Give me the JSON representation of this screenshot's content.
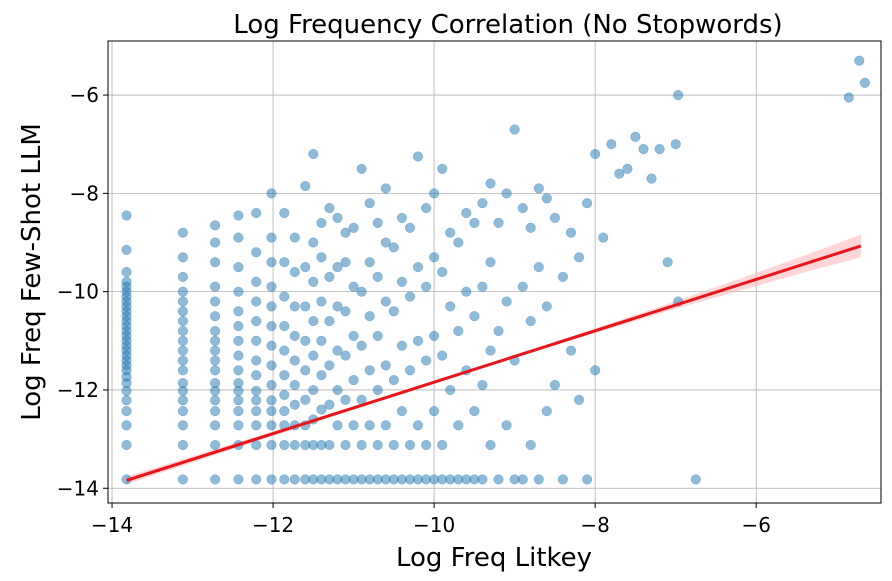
{
  "chart_data": {
    "type": "scatter",
    "title": "Log Frequency Correlation (No Stopwords)",
    "xlabel": "Log Freq Litkey",
    "ylabel": "Log Freq Few-Shot LLM",
    "xlim": [
      -14.05,
      -4.45
    ],
    "ylim": [
      -14.3,
      -4.9
    ],
    "xticks": [
      -14,
      -12,
      -10,
      -8,
      -6
    ],
    "yticks": [
      -14,
      -12,
      -10,
      -8,
      -6
    ],
    "xtick_labels": [
      "−14",
      "−12",
      "−10",
      "−8",
      "−6"
    ],
    "ytick_labels": [
      "−14",
      "−12",
      "−10",
      "−8",
      "−6"
    ],
    "grid": true,
    "colors": {
      "points": "#1f77b4",
      "regression": "#e8161b",
      "band": "#ffb3b8"
    },
    "point_alpha": 0.5,
    "regression": {
      "x": [
        -13.82,
        -4.7
      ],
      "y": [
        -13.84,
        -9.07
      ],
      "band_halfwidth_at_ends": [
        0.05,
        0.2
      ]
    },
    "series": [
      {
        "name": "words",
        "x": [
          -13.82,
          -13.82,
          -13.82,
          -13.82,
          -13.82,
          -13.82,
          -13.82,
          -13.82,
          -13.82,
          -13.82,
          -13.82,
          -13.82,
          -13.82,
          -13.82,
          -13.82,
          -13.82,
          -13.82,
          -13.82,
          -13.82,
          -13.82,
          -13.82,
          -13.82,
          -13.82,
          -13.82,
          -13.82,
          -13.82,
          -13.82,
          -13.82,
          -13.82,
          -13.82,
          -13.12,
          -13.12,
          -13.12,
          -13.12,
          -13.12,
          -13.12,
          -13.12,
          -13.12,
          -13.12,
          -13.12,
          -13.12,
          -13.12,
          -13.12,
          -13.12,
          -13.12,
          -13.12,
          -13.12,
          -13.12,
          -13.12,
          -12.72,
          -12.72,
          -12.72,
          -12.72,
          -12.72,
          -12.72,
          -12.72,
          -12.72,
          -12.72,
          -12.72,
          -12.72,
          -12.72,
          -12.72,
          -12.72,
          -12.72,
          -12.72,
          -12.72,
          -12.72,
          -12.43,
          -12.43,
          -12.43,
          -12.43,
          -12.43,
          -12.43,
          -12.43,
          -12.43,
          -12.43,
          -12.43,
          -12.43,
          -12.43,
          -12.43,
          -12.43,
          -12.43,
          -12.43,
          -12.21,
          -12.21,
          -12.21,
          -12.21,
          -12.21,
          -12.21,
          -12.21,
          -12.21,
          -12.21,
          -12.21,
          -12.21,
          -12.21,
          -12.21,
          -12.21,
          -12.02,
          -12.02,
          -12.02,
          -12.02,
          -12.02,
          -12.02,
          -12.02,
          -12.02,
          -12.02,
          -12.02,
          -12.02,
          -12.02,
          -12.02,
          -12.02,
          -11.86,
          -11.86,
          -11.86,
          -11.86,
          -11.86,
          -11.86,
          -11.86,
          -11.86,
          -11.86,
          -11.86,
          -11.86,
          -11.73,
          -11.73,
          -11.73,
          -11.73,
          -11.73,
          -11.73,
          -11.73,
          -11.73,
          -11.73,
          -11.73,
          -11.6,
          -11.6,
          -11.6,
          -11.6,
          -11.6,
          -11.6,
          -11.6,
          -11.6,
          -11.6,
          -11.5,
          -11.5,
          -11.5,
          -11.5,
          -11.5,
          -11.5,
          -11.5,
          -11.5,
          -11.5,
          -11.4,
          -11.4,
          -11.4,
          -11.4,
          -11.4,
          -11.4,
          -11.4,
          -11.4,
          -11.3,
          -11.3,
          -11.3,
          -11.3,
          -11.3,
          -11.3,
          -11.3,
          -11.2,
          -11.2,
          -11.2,
          -11.2,
          -11.2,
          -11.2,
          -11.2,
          -11.1,
          -11.1,
          -11.1,
          -11.1,
          -11.1,
          -11.1,
          -11.1,
          -11.0,
          -11.0,
          -11.0,
          -11.0,
          -11.0,
          -11.0,
          -10.9,
          -10.9,
          -10.9,
          -10.9,
          -10.9,
          -10.9,
          -10.8,
          -10.8,
          -10.8,
          -10.8,
          -10.8,
          -10.8,
          -10.7,
          -10.7,
          -10.7,
          -10.7,
          -10.7,
          -10.7,
          -10.6,
          -10.6,
          -10.6,
          -10.6,
          -10.6,
          -10.6,
          -10.5,
          -10.5,
          -10.5,
          -10.5,
          -10.5,
          -10.4,
          -10.4,
          -10.4,
          -10.4,
          -10.4,
          -10.3,
          -10.3,
          -10.3,
          -10.3,
          -10.3,
          -10.2,
          -10.2,
          -10.2,
          -10.2,
          -10.2,
          -10.1,
          -10.1,
          -10.1,
          -10.1,
          -10.1,
          -10.0,
          -10.0,
          -10.0,
          -10.0,
          -10.0,
          -9.9,
          -9.9,
          -9.9,
          -9.9,
          -9.9,
          -9.8,
          -9.8,
          -9.8,
          -9.8,
          -9.7,
          -9.7,
          -9.7,
          -9.7,
          -9.6,
          -9.6,
          -9.6,
          -9.6,
          -9.5,
          -9.5,
          -9.5,
          -9.5,
          -9.4,
          -9.4,
          -9.4,
          -9.4,
          -9.3,
          -9.3,
          -9.3,
          -9.3,
          -9.2,
          -9.2,
          -9.2,
          -9.1,
          -9.1,
          -9.1,
          -9.0,
          -9.0,
          -9.0,
          -8.9,
          -8.9,
          -8.9,
          -8.8,
          -8.8,
          -8.8,
          -8.7,
          -8.7,
          -8.7,
          -8.6,
          -8.6,
          -8.6,
          -8.5,
          -8.5,
          -8.4,
          -8.4,
          -8.3,
          -8.3,
          -8.2,
          -8.2,
          -8.1,
          -8.1,
          -8.0,
          -8.0,
          -7.9,
          -7.8,
          -7.7,
          -7.6,
          -7.5,
          -7.4,
          -7.3,
          -7.2,
          -7.1,
          -7.0,
          -6.97,
          -6.97,
          -6.75,
          -4.85,
          -4.72,
          -4.65
        ],
        "y": [
          -13.82,
          -13.12,
          -12.72,
          -12.43,
          -12.21,
          -12.02,
          -11.86,
          -11.73,
          -11.6,
          -11.5,
          -11.4,
          -11.3,
          -11.2,
          -11.1,
          -11.0,
          -10.9,
          -10.8,
          -10.7,
          -10.6,
          -10.5,
          -10.4,
          -10.3,
          -10.2,
          -10.1,
          -10.0,
          -9.9,
          -9.8,
          -9.6,
          -9.15,
          -8.45,
          -13.82,
          -13.12,
          -12.72,
          -12.43,
          -12.21,
          -12.02,
          -11.86,
          -11.6,
          -11.4,
          -11.2,
          -11.0,
          -10.8,
          -10.6,
          -10.4,
          -10.2,
          -10.0,
          -9.7,
          -9.3,
          -8.8,
          -13.82,
          -13.12,
          -12.72,
          -12.43,
          -12.21,
          -12.02,
          -11.86,
          -11.6,
          -11.4,
          -11.2,
          -11.0,
          -10.8,
          -10.5,
          -10.2,
          -9.9,
          -9.4,
          -9.0,
          -8.65,
          -13.82,
          -13.12,
          -12.72,
          -12.43,
          -12.21,
          -12.02,
          -11.86,
          -11.6,
          -11.3,
          -11.0,
          -10.7,
          -10.4,
          -10.0,
          -9.5,
          -8.9,
          -8.45,
          -13.82,
          -13.12,
          -12.72,
          -12.43,
          -12.21,
          -12.02,
          -11.7,
          -11.4,
          -11.0,
          -10.6,
          -10.2,
          -9.8,
          -9.2,
          -8.4,
          -13.82,
          -13.12,
          -12.72,
          -12.43,
          -12.21,
          -11.9,
          -11.5,
          -11.1,
          -10.7,
          -10.3,
          -9.9,
          -9.4,
          -8.9,
          -8.0,
          -13.82,
          -13.12,
          -12.72,
          -12.43,
          -12.1,
          -11.7,
          -11.2,
          -10.7,
          -10.1,
          -9.4,
          -8.4,
          -13.82,
          -13.12,
          -12.72,
          -12.3,
          -11.9,
          -11.4,
          -10.9,
          -10.3,
          -9.6,
          -8.9,
          -13.82,
          -13.12,
          -12.72,
          -12.2,
          -11.6,
          -11.0,
          -10.3,
          -9.5,
          -7.85,
          -13.82,
          -13.12,
          -12.6,
          -12.0,
          -11.3,
          -10.6,
          -9.8,
          -9.0,
          -7.2,
          -13.82,
          -13.12,
          -12.4,
          -11.7,
          -11.0,
          -10.2,
          -9.3,
          -8.6,
          -13.82,
          -13.12,
          -12.3,
          -11.5,
          -10.6,
          -9.7,
          -8.3,
          -13.82,
          -12.72,
          -12.0,
          -11.2,
          -10.3,
          -9.5,
          -8.5,
          -13.82,
          -13.12,
          -12.2,
          -11.3,
          -10.4,
          -9.4,
          -8.8,
          -13.82,
          -12.72,
          -11.8,
          -10.9,
          -9.9,
          -8.7,
          -13.82,
          -13.12,
          -12.2,
          -11.1,
          -10.0,
          -7.5,
          -13.82,
          -12.72,
          -11.6,
          -10.5,
          -9.4,
          -8.2,
          -13.82,
          -13.12,
          -12.0,
          -10.9,
          -9.7,
          -8.6,
          -13.82,
          -12.72,
          -11.5,
          -10.2,
          -9.0,
          -7.9,
          -13.82,
          -13.12,
          -11.8,
          -10.4,
          -9.1,
          -13.82,
          -12.43,
          -11.1,
          -9.8,
          -8.5,
          -13.82,
          -13.12,
          -11.6,
          -10.1,
          -8.7,
          -13.82,
          -12.72,
          -11.0,
          -9.5,
          -7.25,
          -13.82,
          -13.12,
          -11.4,
          -9.9,
          -8.3,
          -13.82,
          -12.43,
          -10.9,
          -9.3,
          -8.0,
          -13.82,
          -13.12,
          -11.3,
          -9.6,
          -7.5,
          -13.82,
          -12.0,
          -10.3,
          -8.8,
          -13.82,
          -12.72,
          -10.8,
          -9.0,
          -13.82,
          -11.6,
          -10.0,
          -8.4,
          -13.82,
          -12.43,
          -10.5,
          -8.6,
          -13.82,
          -11.9,
          -9.9,
          -8.2,
          -13.12,
          -11.2,
          -9.4,
          -7.8,
          -13.82,
          -10.8,
          -8.6,
          -12.72,
          -10.2,
          -8.0,
          -13.82,
          -11.4,
          -6.7,
          -13.82,
          -9.9,
          -8.3,
          -13.12,
          -10.6,
          -8.7,
          -13.82,
          -9.5,
          -7.9,
          -12.43,
          -10.3,
          -8.1,
          -11.9,
          -8.5,
          -13.82,
          -9.7,
          -11.2,
          -8.8,
          -12.2,
          -9.3,
          -13.82,
          -8.2,
          -11.6,
          -7.2,
          -8.9,
          -7.0,
          -7.6,
          -7.5,
          -6.85,
          -7.1,
          -7.7,
          -7.1,
          -9.4,
          -7.0,
          -6.0,
          -10.2,
          -13.82,
          -6.05,
          -5.3,
          -5.75
        ]
      }
    ]
  }
}
